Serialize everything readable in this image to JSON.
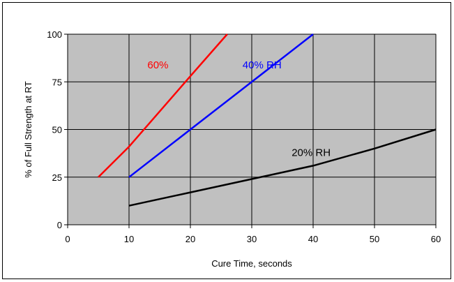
{
  "chart_data": {
    "type": "line",
    "title": "",
    "xlabel": "Cure Time, seconds",
    "ylabel": "% of Full Strength at RT",
    "xlim": [
      0,
      60
    ],
    "ylim": [
      0,
      100
    ],
    "xticks": [
      "0",
      "10",
      "20",
      "30",
      "40",
      "50",
      "60"
    ],
    "yticks": [
      "0",
      "25",
      "50",
      "75",
      "100"
    ],
    "grid": true,
    "legend": "none",
    "plot_background": "#c0c0c0",
    "series": [
      {
        "name": "60%",
        "color": "#ff0000",
        "points": [
          [
            5,
            25
          ],
          [
            10,
            41
          ],
          [
            20,
            78
          ],
          [
            26,
            100
          ]
        ],
        "label_at": [
          13,
          82
        ]
      },
      {
        "name": "40% RH",
        "color": "#0000ff",
        "points": [
          [
            10,
            25
          ],
          [
            20,
            50
          ],
          [
            30,
            75
          ],
          [
            40,
            100
          ]
        ],
        "label_at": [
          28.5,
          82
        ]
      },
      {
        "name": "20% RH",
        "color": "#000000",
        "points": [
          [
            10,
            10
          ],
          [
            20,
            17
          ],
          [
            30,
            24
          ],
          [
            40,
            31
          ],
          [
            50,
            40
          ],
          [
            60,
            50
          ]
        ],
        "label_at": [
          36.5,
          36
        ]
      }
    ]
  }
}
